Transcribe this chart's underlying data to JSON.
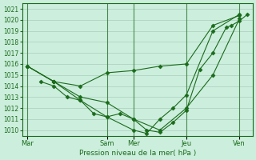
{
  "title": "",
  "xlabel": "Pression niveau de la mer( hPa )",
  "ylabel": "",
  "bg_color": "#cceedd",
  "line_color": "#1a6b1a",
  "grid_color": "#aaccbb",
  "ylim": [
    1009.5,
    1021.5
  ],
  "yticks": [
    1010,
    1011,
    1012,
    1013,
    1014,
    1015,
    1016,
    1017,
    1018,
    1019,
    1020,
    1021
  ],
  "xtick_labels": [
    "Mar",
    "Sam",
    "Mer",
    "Jeu",
    "Ven"
  ],
  "xtick_positions": [
    0,
    3,
    4,
    6,
    8
  ],
  "line1_x": [
    0.0,
    1.0,
    2.0,
    3.0,
    4.0,
    5.0,
    6.0,
    7.0,
    8.0
  ],
  "line1_y": [
    1015.8,
    1014.4,
    1014.0,
    1015.2,
    1015.4,
    1015.8,
    1016.0,
    1019.5,
    1020.4
  ],
  "line2_x": [
    0.0,
    1.0,
    2.0,
    3.0,
    4.0,
    5.0,
    6.0,
    7.0,
    8.0
  ],
  "line2_y": [
    1015.8,
    1014.4,
    1013.0,
    1012.5,
    1011.0,
    1010.0,
    1012.0,
    1015.0,
    1020.1
  ],
  "line3_x": [
    0.0,
    1.0,
    2.0,
    3.0,
    4.0,
    4.5,
    5.0,
    5.5,
    6.0,
    7.0,
    8.0
  ],
  "line3_y": [
    1015.8,
    1014.4,
    1012.7,
    1011.2,
    1010.0,
    1009.7,
    1011.0,
    1012.0,
    1013.2,
    1019.0,
    1020.5
  ],
  "line4_x": [
    0.5,
    1.0,
    1.5,
    2.0,
    2.5,
    3.0,
    3.5,
    4.0,
    4.5,
    5.0,
    5.5,
    6.0,
    6.5,
    7.0,
    7.5,
    7.7,
    8.0,
    8.3
  ],
  "line4_y": [
    1014.4,
    1014.0,
    1013.0,
    1012.7,
    1011.5,
    1011.2,
    1011.5,
    1011.0,
    1010.0,
    1009.8,
    1010.7,
    1011.8,
    1015.5,
    1017.0,
    1019.3,
    1019.5,
    1019.9,
    1020.5
  ]
}
